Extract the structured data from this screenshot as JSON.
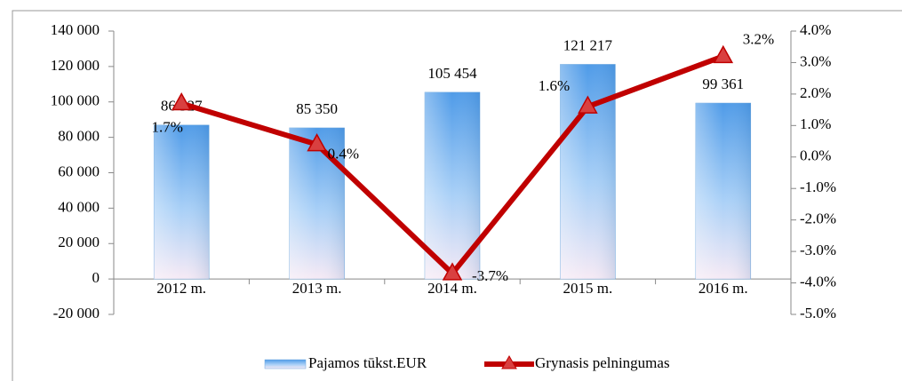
{
  "chart_data": {
    "type": "bar",
    "categories": [
      "2012 m.",
      "2013 m.",
      "2014 m.",
      "2015 m.",
      "2016 m."
    ],
    "series": [
      {
        "name": "Pajamos tūkst.EUR",
        "type": "bar",
        "color": "#4f9be8",
        "values": [
          86927,
          85350,
          105454,
          121217,
          99361
        ],
        "value_labels": [
          "86 927",
          "85 350",
          "105 454",
          "121 217",
          "99 361"
        ]
      },
      {
        "name": "Grynasis pelningumas",
        "type": "line",
        "axis": "y2",
        "color": "#c00000",
        "values": [
          1.7,
          0.4,
          -3.7,
          1.6,
          3.2
        ],
        "value_labels": [
          "1.7%",
          "0.4%",
          "-3.7%",
          "1.6%",
          "3.2%"
        ]
      }
    ],
    "ylim": [
      -20000,
      140000
    ],
    "yticks": [
      {
        "value": -20000,
        "label": "-20 000"
      },
      0,
      {
        "value": 20000,
        "label": "20 000"
      },
      {
        "value": 40000,
        "label": "40 000"
      },
      {
        "value": 60000,
        "label": "60 000"
      },
      {
        "value": 80000,
        "label": "80 000"
      },
      {
        "value": 100000,
        "label": "100 000"
      },
      {
        "value": 120000,
        "label": "120 000"
      },
      {
        "value": 140000,
        "label": "140 000"
      }
    ],
    "y2lim": [
      -5,
      4
    ],
    "y2ticks": [
      {
        "value": -5,
        "label": "-5.0%"
      },
      {
        "value": -4,
        "label": "-4.0%"
      },
      {
        "value": -3,
        "label": "-3.0%"
      },
      {
        "value": -2,
        "label": "-2.0%"
      },
      {
        "value": -1,
        "label": "-1.0%"
      },
      {
        "value": 0,
        "label": "0.0%"
      },
      {
        "value": 1,
        "label": "1.0%"
      },
      {
        "value": 2,
        "label": "2.0%"
      },
      {
        "value": 3,
        "label": "3.0%"
      },
      {
        "value": 4,
        "label": "4.0%"
      }
    ],
    "legend": "bottom"
  }
}
